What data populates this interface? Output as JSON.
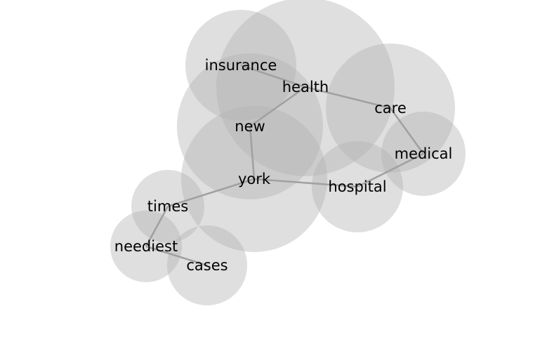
{
  "graph": {
    "nodes": [
      {
        "id": "health",
        "label": "health"
      },
      {
        "id": "new",
        "label": "new"
      },
      {
        "id": "york",
        "label": "york"
      },
      {
        "id": "care",
        "label": "care"
      },
      {
        "id": "insurance",
        "label": "insurance"
      },
      {
        "id": "hospital",
        "label": "hospital"
      },
      {
        "id": "medical",
        "label": "medical"
      },
      {
        "id": "times",
        "label": "times"
      },
      {
        "id": "neediest",
        "label": "neediest"
      },
      {
        "id": "cases",
        "label": "cases"
      }
    ],
    "edges": [
      {
        "source": "insurance",
        "target": "health"
      },
      {
        "source": "health",
        "target": "care"
      },
      {
        "source": "health",
        "target": "new"
      },
      {
        "source": "new",
        "target": "york"
      },
      {
        "source": "york",
        "target": "hospital"
      },
      {
        "source": "york",
        "target": "times"
      },
      {
        "source": "care",
        "target": "medical"
      },
      {
        "source": "medical",
        "target": "hospital"
      },
      {
        "source": "times",
        "target": "neediest"
      },
      {
        "source": "neediest",
        "target": "cases"
      }
    ]
  }
}
